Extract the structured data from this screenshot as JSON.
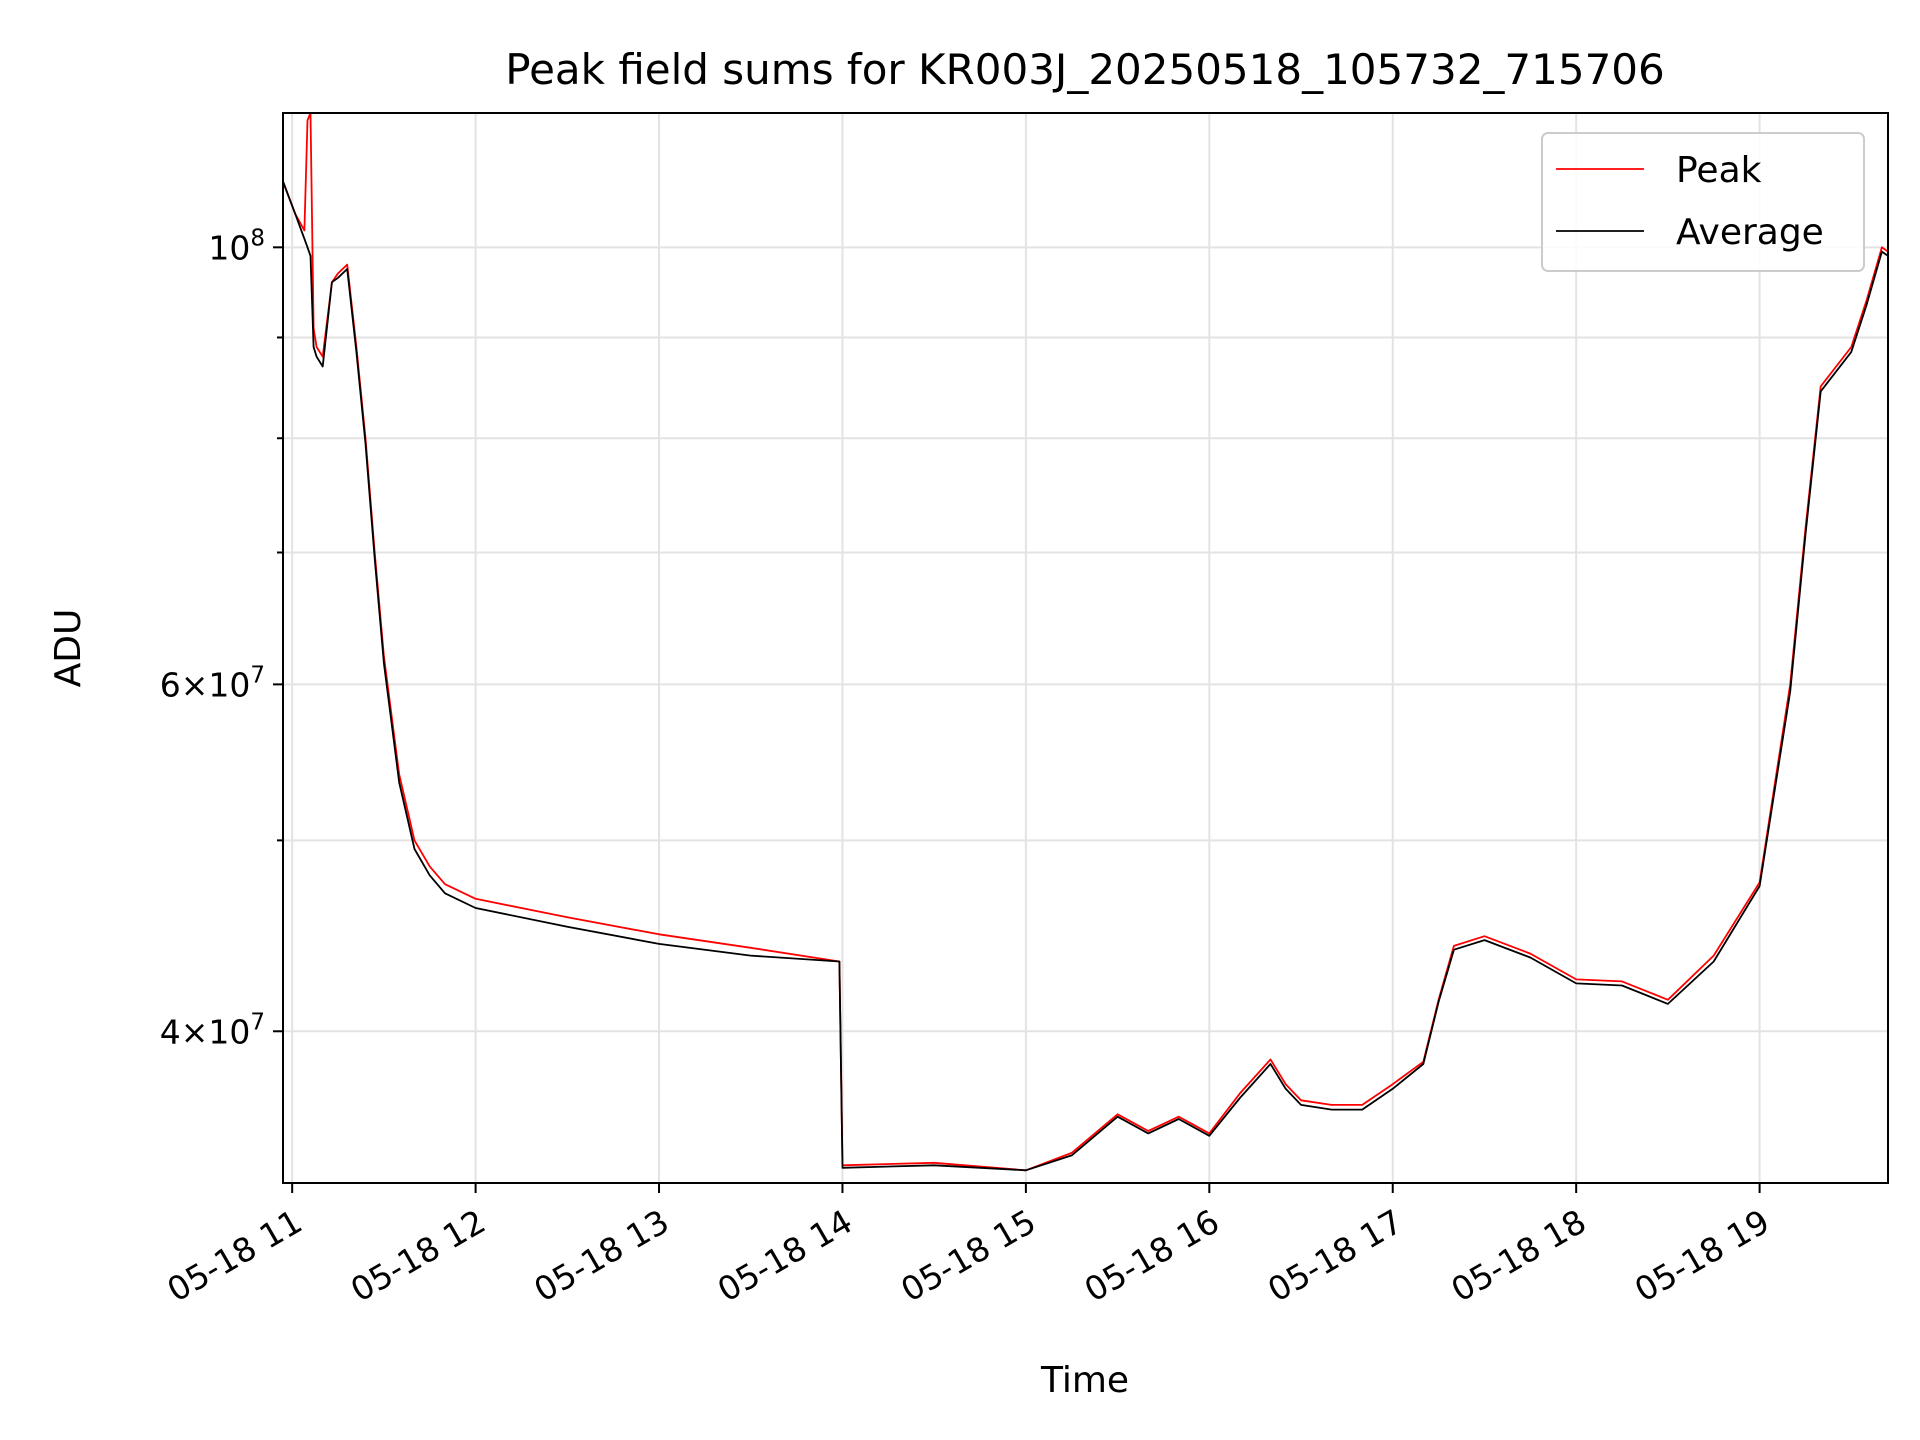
{
  "chart_data": {
    "type": "line",
    "title": "Peak field sums for KR003J_20250518_105732_715706",
    "xlabel": "Time",
    "ylabel": "ADU",
    "xlim": [
      "05-18 10:57",
      "05-18 19:42"
    ],
    "ylim": [
      33500000,
      117000000
    ],
    "yscale": "log",
    "grid": true,
    "legend_position": "upper-right",
    "x_ticks": [
      {
        "value": "05-18 11:00",
        "label": "05-18 11"
      },
      {
        "value": "05-18 12:00",
        "label": "05-18 12"
      },
      {
        "value": "05-18 13:00",
        "label": "05-18 13"
      },
      {
        "value": "05-18 14:00",
        "label": "05-18 14"
      },
      {
        "value": "05-18 15:00",
        "label": "05-18 15"
      },
      {
        "value": "05-18 16:00",
        "label": "05-18 16"
      },
      {
        "value": "05-18 17:00",
        "label": "05-18 17"
      },
      {
        "value": "05-18 18:00",
        "label": "05-18 18"
      },
      {
        "value": "05-18 19:00",
        "label": "05-18 19"
      }
    ],
    "y_ticks": [
      {
        "value": 40000000,
        "mantissa": "4",
        "exponent": "7",
        "times": "×",
        "base": "10"
      },
      {
        "value": 60000000,
        "mantissa": "6",
        "exponent": "7",
        "times": "×",
        "base": "10"
      },
      {
        "value": 100000000,
        "mantissa": "",
        "exponent": "8",
        "times": "",
        "base": "10"
      }
    ],
    "y_minor_ticks": [
      50000000,
      70000000,
      80000000,
      90000000
    ],
    "series": [
      {
        "name": "Peak",
        "color": "#ff0000",
        "x": [
          "05-18 10:57",
          "05-18 11:01",
          "05-18 11:04",
          "05-18 11:05",
          "05-18 11:06",
          "05-18 11:07",
          "05-18 11:08",
          "05-18 11:10",
          "05-18 11:13",
          "05-18 11:15",
          "05-18 11:18",
          "05-18 11:21",
          "05-18 11:24",
          "05-18 11:27",
          "05-18 11:30",
          "05-18 11:35",
          "05-18 11:40",
          "05-18 11:45",
          "05-18 11:50",
          "05-18 12:00",
          "05-18 12:30",
          "05-18 13:00",
          "05-18 13:30",
          "05-18 13:59",
          "05-18 14:00",
          "05-18 14:30",
          "05-18 15:00",
          "05-18 15:15",
          "05-18 15:30",
          "05-18 15:40",
          "05-18 15:50",
          "05-18 16:00",
          "05-18 16:10",
          "05-18 16:20",
          "05-18 16:25",
          "05-18 16:30",
          "05-18 16:40",
          "05-18 16:50",
          "05-18 17:00",
          "05-18 17:10",
          "05-18 17:15",
          "05-18 17:20",
          "05-18 17:30",
          "05-18 17:45",
          "05-18 18:00",
          "05-18 18:15",
          "05-18 18:30",
          "05-18 18:45",
          "05-18 19:00",
          "05-18 19:10",
          "05-18 19:15",
          "05-18 19:20",
          "05-18 19:30",
          "05-18 19:35",
          "05-18 19:40",
          "05-18 19:42"
        ],
        "y": [
          108000000,
          104000000,
          102000000,
          116000000,
          117000000,
          91000000,
          89000000,
          88000000,
          96000000,
          97000000,
          98000000,
          89000000,
          80000000,
          70000000,
          62000000,
          54000000,
          50000000,
          48500000,
          47500000,
          46700000,
          45700000,
          44800000,
          44100000,
          43400000,
          34200000,
          34300000,
          34000000,
          34700000,
          36300000,
          35600000,
          36200000,
          35500000,
          37200000,
          38700000,
          37600000,
          36900000,
          36700000,
          36700000,
          37600000,
          38600000,
          41500000,
          44200000,
          44700000,
          43800000,
          42500000,
          42400000,
          41500000,
          43700000,
          47600000,
          60000000,
          72000000,
          85000000,
          89000000,
          94000000,
          100000000,
          99500000
        ]
      },
      {
        "name": "Average",
        "color": "#000000",
        "x": [
          "05-18 10:57",
          "05-18 11:01",
          "05-18 11:04",
          "05-18 11:05",
          "05-18 11:06",
          "05-18 11:07",
          "05-18 11:08",
          "05-18 11:10",
          "05-18 11:13",
          "05-18 11:15",
          "05-18 11:18",
          "05-18 11:21",
          "05-18 11:24",
          "05-18 11:27",
          "05-18 11:30",
          "05-18 11:35",
          "05-18 11:40",
          "05-18 11:45",
          "05-18 11:50",
          "05-18 12:00",
          "05-18 12:30",
          "05-18 13:00",
          "05-18 13:30",
          "05-18 13:59",
          "05-18 14:00",
          "05-18 14:30",
          "05-18 15:00",
          "05-18 15:15",
          "05-18 15:30",
          "05-18 15:40",
          "05-18 15:50",
          "05-18 16:00",
          "05-18 16:10",
          "05-18 16:20",
          "05-18 16:25",
          "05-18 16:30",
          "05-18 16:40",
          "05-18 16:50",
          "05-18 17:00",
          "05-18 17:10",
          "05-18 17:15",
          "05-18 17:20",
          "05-18 17:30",
          "05-18 17:45",
          "05-18 18:00",
          "05-18 18:15",
          "05-18 18:30",
          "05-18 18:45",
          "05-18 19:00",
          "05-18 19:10",
          "05-18 19:15",
          "05-18 19:20",
          "05-18 19:30",
          "05-18 19:35",
          "05-18 19:40",
          "05-18 19:42"
        ],
        "y": [
          108000000,
          104000000,
          101000000,
          100000000,
          99000000,
          89000000,
          88000000,
          87000000,
          96000000,
          96500000,
          97500000,
          88500000,
          79500000,
          69500000,
          61500000,
          53500000,
          49500000,
          48000000,
          47000000,
          46200000,
          45200000,
          44300000,
          43700000,
          43400000,
          34100000,
          34200000,
          34000000,
          34600000,
          36200000,
          35500000,
          36100000,
          35400000,
          37000000,
          38500000,
          37400000,
          36700000,
          36500000,
          36500000,
          37400000,
          38500000,
          41400000,
          44000000,
          44500000,
          43600000,
          42300000,
          42200000,
          41300000,
          43400000,
          47400000,
          59500000,
          71500000,
          84500000,
          88500000,
          93500000,
          99500000,
          99000000
        ]
      }
    ]
  }
}
